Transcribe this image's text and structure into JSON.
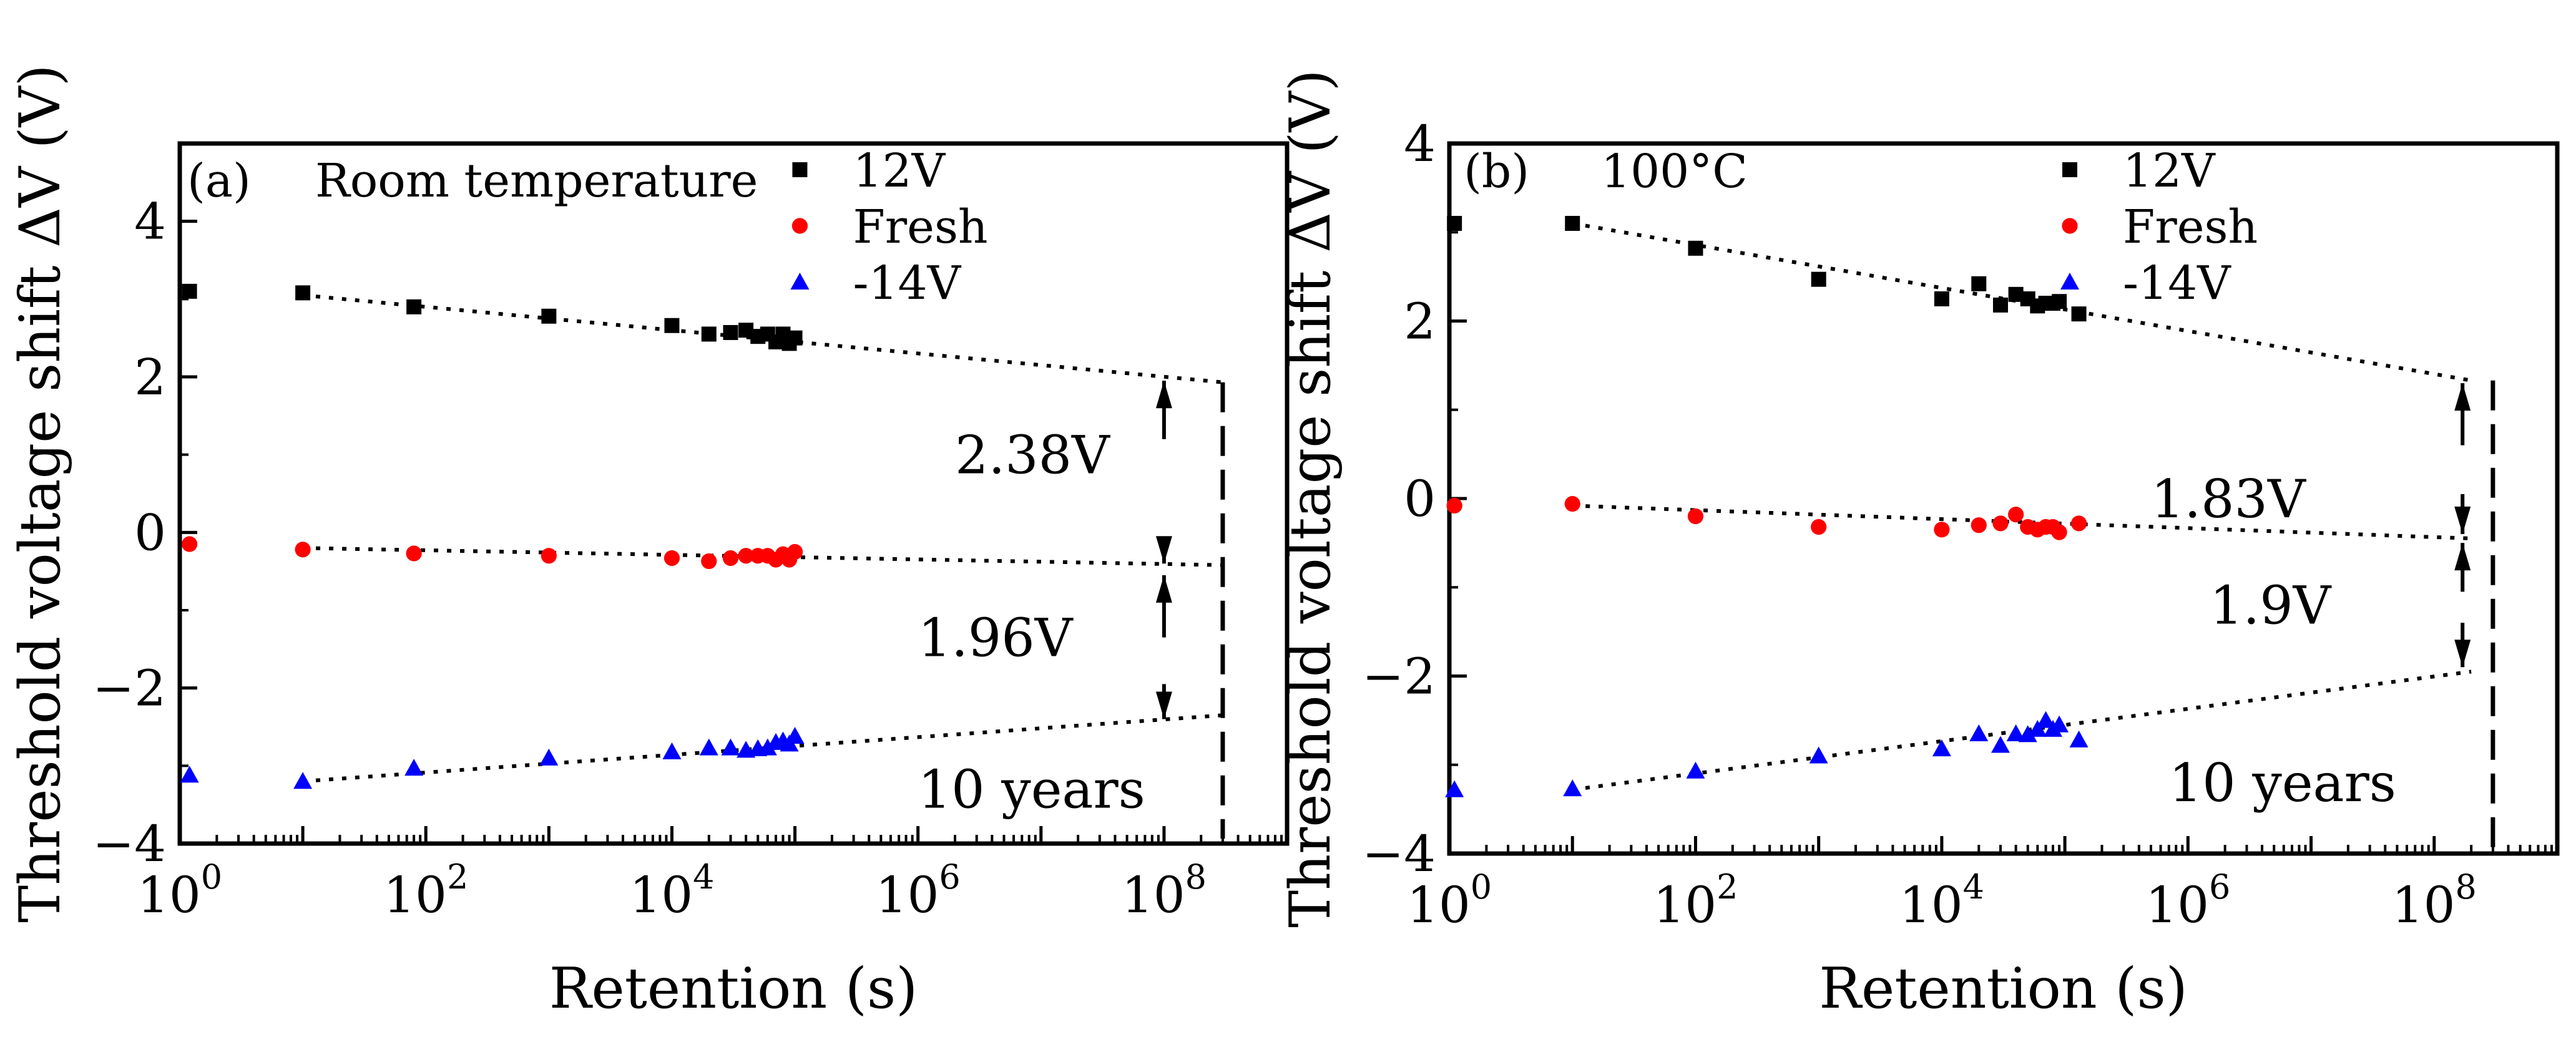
{
  "chart_data": [
    {
      "type": "scatter",
      "panel_label": "(a)",
      "condition_label": "Room temperature",
      "xlabel": "Retention (s)",
      "ylabel": "Threshold voltage shift ΔV (V)",
      "xscale": "log",
      "xlim": [
        1,
        1000000000.0
      ],
      "ylim": [
        -4,
        5
      ],
      "xtick_labels": [
        {
          "base": "10",
          "exp": "0",
          "value": 1
        },
        {
          "base": "10",
          "exp": "2",
          "value": 100
        },
        {
          "base": "10",
          "exp": "4",
          "value": 10000
        },
        {
          "base": "10",
          "exp": "6",
          "value": 1000000
        },
        {
          "base": "10",
          "exp": "8",
          "value": 100000000
        }
      ],
      "ytick_labels": [
        {
          "text": "−4",
          "value": -4
        },
        {
          "text": "−2",
          "value": -2
        },
        {
          "text": "0",
          "value": 0
        },
        {
          "text": "2",
          "value": 2
        },
        {
          "text": "4",
          "value": 4
        }
      ],
      "legend_position": "top-right",
      "series": [
        {
          "name": "12V",
          "marker": "square",
          "color": "#000000",
          "x": [
            1.2,
            10,
            80,
            1000,
            10000,
            20000,
            30000,
            40000,
            50000,
            60000,
            70000,
            80000,
            90000,
            100000
          ],
          "y": [
            3.1,
            3.08,
            2.9,
            2.78,
            2.66,
            2.55,
            2.57,
            2.6,
            2.52,
            2.55,
            2.45,
            2.55,
            2.43,
            2.5
          ]
        },
        {
          "name": "Fresh",
          "marker": "circle",
          "color": "#ff0000",
          "x": [
            1.2,
            10,
            80,
            1000,
            10000,
            20000,
            30000,
            40000,
            50000,
            60000,
            70000,
            80000,
            90000,
            100000
          ],
          "y": [
            -0.15,
            -0.22,
            -0.27,
            -0.3,
            -0.33,
            -0.37,
            -0.33,
            -0.3,
            -0.3,
            -0.3,
            -0.35,
            -0.28,
            -0.35,
            -0.25
          ]
        },
        {
          "name": "-14V",
          "marker": "triangle",
          "color": "#0000ff",
          "x": [
            1.2,
            10,
            80,
            1000,
            10000,
            20000,
            30000,
            40000,
            50000,
            60000,
            70000,
            80000,
            90000,
            100000
          ],
          "y": [
            -3.12,
            -3.2,
            -3.03,
            -2.9,
            -2.82,
            -2.77,
            -2.77,
            -2.8,
            -2.78,
            -2.77,
            -2.7,
            -2.68,
            -2.72,
            -2.62
          ]
        }
      ],
      "fit_lines": [
        {
          "series": "12V",
          "x": [
            10,
            300000000
          ],
          "y": [
            3.05,
            1.93
          ]
        },
        {
          "series": "Fresh",
          "x": [
            10,
            300000000
          ],
          "y": [
            -0.2,
            -0.42
          ]
        },
        {
          "series": "-14V",
          "x": [
            10,
            300000000
          ],
          "y": [
            -3.2,
            -2.35
          ]
        }
      ],
      "ten_years_marker_x": 300000000,
      "annotations": [
        {
          "text": "2.38V",
          "x": 2000000,
          "y": 1.0
        },
        {
          "text": "1.96V",
          "x": 1000000,
          "y": -1.35
        },
        {
          "text": "10 years",
          "x": 1000000,
          "y": -3.3
        }
      ],
      "arrows": [
        {
          "x": 100000000,
          "y_from": 1.2,
          "y_to": 1.95
        },
        {
          "x": 100000000,
          "y_from": -0.05,
          "y_to": -0.4
        },
        {
          "x": 100000000,
          "y_from": -1.35,
          "y_to": -0.55
        },
        {
          "x": 100000000,
          "y_from": -1.95,
          "y_to": -2.4
        }
      ]
    },
    {
      "type": "scatter",
      "panel_label": "(b)",
      "condition_label": "100°C",
      "xlabel": "Retention (s)",
      "ylabel": "Threshold voltage shift ΔV (V)",
      "xscale": "log",
      "xlim": [
        1,
        1000000000.0
      ],
      "ylim": [
        -4,
        4
      ],
      "xtick_labels": [
        {
          "base": "10",
          "exp": "0",
          "value": 1
        },
        {
          "base": "10",
          "exp": "2",
          "value": 100
        },
        {
          "base": "10",
          "exp": "4",
          "value": 10000
        },
        {
          "base": "10",
          "exp": "6",
          "value": 1000000
        },
        {
          "base": "10",
          "exp": "8",
          "value": 100000000
        }
      ],
      "ytick_labels": [
        {
          "text": "−4",
          "value": -4
        },
        {
          "text": "−2",
          "value": -2
        },
        {
          "text": "0",
          "value": 0
        },
        {
          "text": "2",
          "value": 2
        },
        {
          "text": "4",
          "value": 4
        }
      ],
      "legend_position": "top-right",
      "series": [
        {
          "name": "12V",
          "marker": "square",
          "color": "#000000",
          "x": [
            1.1,
            10,
            100,
            1000,
            10000,
            20000,
            30000,
            40000,
            50000,
            60000,
            70000,
            80000,
            90000,
            130000
          ],
          "y": [
            3.1,
            3.1,
            2.82,
            2.47,
            2.25,
            2.42,
            2.18,
            2.3,
            2.25,
            2.17,
            2.2,
            2.2,
            2.22,
            2.08
          ]
        },
        {
          "name": "Fresh",
          "marker": "circle",
          "color": "#ff0000",
          "x": [
            1.1,
            10,
            100,
            1000,
            10000,
            20000,
            30000,
            40000,
            50000,
            60000,
            70000,
            80000,
            90000,
            130000
          ],
          "y": [
            -0.08,
            -0.06,
            -0.2,
            -0.32,
            -0.35,
            -0.3,
            -0.28,
            -0.18,
            -0.32,
            -0.35,
            -0.32,
            -0.32,
            -0.38,
            -0.28
          ]
        },
        {
          "name": "-14V",
          "marker": "triangle",
          "color": "#0000ff",
          "x": [
            1.1,
            10,
            100,
            1000,
            10000,
            20000,
            30000,
            40000,
            50000,
            60000,
            70000,
            80000,
            90000,
            130000
          ],
          "y": [
            -3.28,
            -3.27,
            -3.07,
            -2.9,
            -2.82,
            -2.65,
            -2.78,
            -2.65,
            -2.66,
            -2.6,
            -2.5,
            -2.6,
            -2.55,
            -2.72
          ]
        }
      ],
      "fit_lines": [
        {
          "series": "12V",
          "x": [
            10,
            200000000
          ],
          "y": [
            3.1,
            1.33
          ]
        },
        {
          "series": "Fresh",
          "x": [
            10,
            200000000
          ],
          "y": [
            -0.08,
            -0.45
          ]
        },
        {
          "series": "-14V",
          "x": [
            10,
            200000000
          ],
          "y": [
            -3.28,
            -1.95
          ]
        }
      ],
      "ten_years_marker_x": 300000000,
      "annotations": [
        {
          "text": "1.83V",
          "x": 500000,
          "y": 0.0
        },
        {
          "text": "1.9V",
          "x": 1500000,
          "y": -1.2
        },
        {
          "text": "10 years",
          "x": 700000,
          "y": -3.2
        }
      ],
      "arrows": [
        {
          "x": 170000000,
          "y_from": 0.6,
          "y_to": 1.3
        },
        {
          "x": 170000000,
          "y_from": 0.05,
          "y_to": -0.4
        },
        {
          "x": 170000000,
          "y_from": -1.05,
          "y_to": -0.5
        },
        {
          "x": 170000000,
          "y_from": -1.4,
          "y_to": -1.9
        }
      ]
    }
  ]
}
